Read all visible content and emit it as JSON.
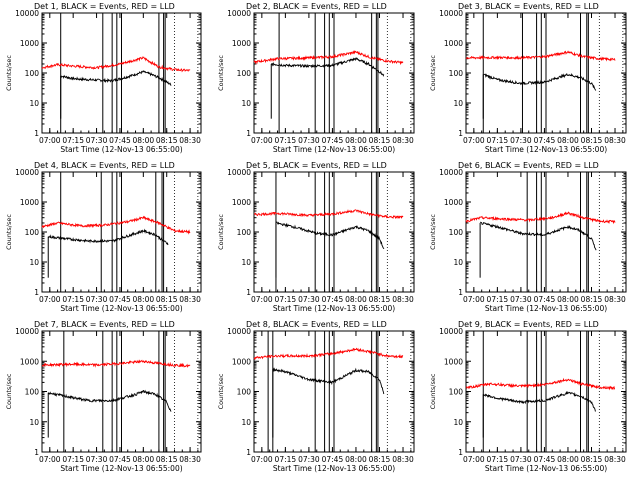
{
  "window": {
    "width": 640,
    "height": 480
  },
  "colors": {
    "events": "#000000",
    "lld": "#ff0000",
    "axes": "#000000",
    "background": "#ffffff"
  },
  "common": {
    "xlabel": "Start Time (12-Nov-13 06:55:00)",
    "ylabel": "Counts/sec",
    "x_tick_labels": [
      "07:00",
      "07:15",
      "07:30",
      "07:45",
      "08:00",
      "08:15",
      "08:30"
    ],
    "y_tick_labels": [
      "1",
      "10",
      "100",
      "1000",
      "10000"
    ]
  },
  "chart_data": [
    {
      "type": "line",
      "title": "Det 1, BLACK = Events, RED = LLD",
      "x_range_minutes": [
        "06:55",
        "08:37"
      ],
      "ylim": [
        1,
        10000
      ],
      "yscale": "log",
      "series": [
        {
          "name": "Events",
          "color": "#000000",
          "start": "07:07",
          "end": "08:18",
          "points": [
            [
              "07:07",
              80
            ],
            [
              "07:15",
              65
            ],
            [
              "07:25",
              60
            ],
            [
              "07:40",
              55
            ],
            [
              "07:50",
              75
            ],
            [
              "08:00",
              110
            ],
            [
              "08:05",
              90
            ],
            [
              "08:10",
              70
            ],
            [
              "08:15",
              50
            ],
            [
              "08:18",
              40
            ]
          ]
        },
        {
          "name": "LLD",
          "color": "#ff0000",
          "start": "06:55",
          "end": "08:30",
          "points": [
            [
              "06:55",
              150
            ],
            [
              "07:05",
              190
            ],
            [
              "07:15",
              170
            ],
            [
              "07:30",
              150
            ],
            [
              "07:45",
              200
            ],
            [
              "08:00",
              320
            ],
            [
              "08:10",
              160
            ],
            [
              "08:20",
              130
            ],
            [
              "08:30",
              120
            ]
          ]
        }
      ],
      "vertical_markers": [
        "07:07",
        "07:34",
        "07:40",
        "07:43",
        "07:46",
        "08:10",
        "08:13",
        "08:14"
      ]
    },
    {
      "type": "line",
      "title": "Det 2, BLACK = Events, RED = LLD",
      "x_range_minutes": [
        "06:55",
        "08:37"
      ],
      "ylim": [
        1,
        10000
      ],
      "yscale": "log",
      "series": [
        {
          "name": "Events",
          "color": "#000000",
          "start": "07:06",
          "end": "08:18",
          "points": [
            [
              "07:06",
              200
            ],
            [
              "07:15",
              180
            ],
            [
              "07:30",
              170
            ],
            [
              "07:45",
              180
            ],
            [
              "08:00",
              300
            ],
            [
              "08:08",
              200
            ],
            [
              "08:15",
              110
            ],
            [
              "08:18",
              80
            ]
          ]
        },
        {
          "name": "LLD",
          "color": "#ff0000",
          "start": "06:55",
          "end": "08:30",
          "points": [
            [
              "06:55",
              230
            ],
            [
              "07:10",
              300
            ],
            [
              "07:30",
              320
            ],
            [
              "07:45",
              350
            ],
            [
              "08:00",
              500
            ],
            [
              "08:10",
              320
            ],
            [
              "08:20",
              250
            ],
            [
              "08:30",
              220
            ]
          ]
        }
      ],
      "vertical_markers": [
        "07:11",
        "07:34",
        "07:40",
        "07:43",
        "07:46",
        "08:10",
        "08:13",
        "08:14"
      ]
    },
    {
      "type": "line",
      "title": "Det 3, BLACK = Events, RED = LLD",
      "x_range_minutes": [
        "06:55",
        "08:37"
      ],
      "ylim": [
        1,
        10000
      ],
      "yscale": "log",
      "series": [
        {
          "name": "Events",
          "color": "#000000",
          "start": "07:06",
          "end": "08:18",
          "points": [
            [
              "07:06",
              90
            ],
            [
              "07:15",
              60
            ],
            [
              "07:30",
              45
            ],
            [
              "07:45",
              50
            ],
            [
              "08:00",
              90
            ],
            [
              "08:08",
              70
            ],
            [
              "08:15",
              45
            ],
            [
              "08:18",
              25
            ]
          ]
        },
        {
          "name": "LLD",
          "color": "#ff0000",
          "start": "06:55",
          "end": "08:30",
          "points": [
            [
              "06:55",
              320
            ],
            [
              "07:15",
              330
            ],
            [
              "07:30",
              320
            ],
            [
              "07:45",
              350
            ],
            [
              "08:00",
              500
            ],
            [
              "08:10",
              350
            ],
            [
              "08:20",
              300
            ],
            [
              "08:30",
              280
            ]
          ]
        }
      ],
      "vertical_markers": [
        "07:06",
        "07:31",
        "07:40",
        "07:43",
        "07:46",
        "08:08",
        "08:12",
        "08:13"
      ]
    },
    {
      "type": "line",
      "title": "Det 4, BLACK = Events, RED = LLD",
      "x_range_minutes": [
        "06:55",
        "08:37"
      ],
      "ylim": [
        1,
        10000
      ],
      "yscale": "log",
      "series": [
        {
          "name": "Events",
          "color": "#000000",
          "start": "06:59",
          "end": "08:16",
          "points": [
            [
              "06:59",
              70
            ],
            [
              "07:10",
              60
            ],
            [
              "07:25",
              50
            ],
            [
              "07:40",
              50
            ],
            [
              "07:55",
              90
            ],
            [
              "08:00",
              110
            ],
            [
              "08:08",
              80
            ],
            [
              "08:13",
              50
            ],
            [
              "08:16",
              40
            ]
          ]
        },
        {
          "name": "LLD",
          "color": "#ff0000",
          "start": "06:55",
          "end": "08:30",
          "points": [
            [
              "06:55",
              150
            ],
            [
              "07:05",
              200
            ],
            [
              "07:20",
              160
            ],
            [
              "07:35",
              170
            ],
            [
              "07:50",
              220
            ],
            [
              "08:00",
              300
            ],
            [
              "08:10",
              200
            ],
            [
              "08:20",
              110
            ],
            [
              "08:30",
              100
            ]
          ]
        }
      ],
      "vertical_markers": [
        "07:07",
        "07:33",
        "07:40",
        "07:43",
        "07:46",
        "08:08",
        "08:12",
        "08:13"
      ]
    },
    {
      "type": "line",
      "title": "Det 5, BLACK = Events, RED = LLD",
      "x_range_minutes": [
        "06:55",
        "08:37"
      ],
      "ylim": [
        1,
        10000
      ],
      "yscale": "log",
      "series": [
        {
          "name": "Events",
          "color": "#000000",
          "start": "07:09",
          "end": "08:18",
          "points": [
            [
              "07:09",
              200
            ],
            [
              "07:20",
              150
            ],
            [
              "07:35",
              90
            ],
            [
              "07:45",
              80
            ],
            [
              "08:00",
              150
            ],
            [
              "08:08",
              110
            ],
            [
              "08:15",
              60
            ],
            [
              "08:18",
              25
            ]
          ]
        },
        {
          "name": "LLD",
          "color": "#ff0000",
          "start": "06:55",
          "end": "08:30",
          "points": [
            [
              "06:55",
              380
            ],
            [
              "07:10",
              420
            ],
            [
              "07:30",
              360
            ],
            [
              "07:45",
              400
            ],
            [
              "08:00",
              520
            ],
            [
              "08:10",
              380
            ],
            [
              "08:20",
              320
            ],
            [
              "08:30",
              310
            ]
          ]
        }
      ],
      "vertical_markers": [
        "07:09",
        "07:34",
        "07:40",
        "07:43",
        "07:46",
        "08:10",
        "08:13",
        "08:14"
      ]
    },
    {
      "type": "line",
      "title": "Det 6, BLACK = Events, RED = LLD",
      "x_range_minutes": [
        "06:55",
        "08:37"
      ],
      "ylim": [
        1,
        10000
      ],
      "yscale": "log",
      "series": [
        {
          "name": "Events",
          "color": "#000000",
          "start": "07:04",
          "end": "08:18",
          "points": [
            [
              "07:04",
              200
            ],
            [
              "07:15",
              150
            ],
            [
              "07:30",
              90
            ],
            [
              "07:45",
              80
            ],
            [
              "08:00",
              150
            ],
            [
              "08:08",
              110
            ],
            [
              "08:15",
              60
            ],
            [
              "08:18",
              25
            ]
          ]
        },
        {
          "name": "LLD",
          "color": "#ff0000",
          "start": "06:55",
          "end": "08:30",
          "points": [
            [
              "06:55",
              230
            ],
            [
              "07:05",
              300
            ],
            [
              "07:20",
              270
            ],
            [
              "07:35",
              250
            ],
            [
              "07:50",
              300
            ],
            [
              "08:00",
              430
            ],
            [
              "08:10",
              300
            ],
            [
              "08:20",
              230
            ],
            [
              "08:30",
              220
            ]
          ]
        }
      ],
      "vertical_markers": [
        "07:34",
        "07:40",
        "07:43",
        "07:46",
        "08:08",
        "08:12",
        "08:13"
      ]
    },
    {
      "type": "line",
      "title": "Det 7, BLACK = Events, RED = LLD",
      "x_range_minutes": [
        "06:55",
        "08:37"
      ],
      "ylim": [
        1,
        10000
      ],
      "yscale": "log",
      "series": [
        {
          "name": "Events",
          "color": "#000000",
          "start": "06:59",
          "end": "08:18",
          "points": [
            [
              "06:59",
              90
            ],
            [
              "07:10",
              70
            ],
            [
              "07:25",
              50
            ],
            [
              "07:40",
              50
            ],
            [
              "07:55",
              80
            ],
            [
              "08:00",
              100
            ],
            [
              "08:08",
              80
            ],
            [
              "08:15",
              45
            ],
            [
              "08:18",
              20
            ]
          ]
        },
        {
          "name": "LLD",
          "color": "#ff0000",
          "start": "06:55",
          "end": "08:30",
          "points": [
            [
              "06:55",
              750
            ],
            [
              "07:15",
              800
            ],
            [
              "07:30",
              750
            ],
            [
              "07:45",
              850
            ],
            [
              "08:00",
              1000
            ],
            [
              "08:10",
              850
            ],
            [
              "08:20",
              750
            ],
            [
              "08:30",
              700
            ]
          ]
        }
      ],
      "vertical_markers": [
        "07:09",
        "07:34",
        "07:40",
        "07:43",
        "07:46",
        "08:10",
        "08:13",
        "08:14"
      ]
    },
    {
      "type": "line",
      "title": "Det 8, BLACK = Events, RED = LLD",
      "x_range_minutes": [
        "06:55",
        "08:37"
      ],
      "ylim": [
        1,
        10000
      ],
      "yscale": "log",
      "series": [
        {
          "name": "Events",
          "color": "#000000",
          "start": "07:07",
          "end": "08:18",
          "points": [
            [
              "07:07",
              550
            ],
            [
              "07:15",
              450
            ],
            [
              "07:30",
              250
            ],
            [
              "07:45",
              200
            ],
            [
              "08:00",
              500
            ],
            [
              "08:08",
              450
            ],
            [
              "08:15",
              250
            ],
            [
              "08:18",
              80
            ]
          ]
        },
        {
          "name": "LLD",
          "color": "#ff0000",
          "start": "06:55",
          "end": "08:30",
          "points": [
            [
              "06:55",
              1300
            ],
            [
              "07:10",
              1500
            ],
            [
              "07:30",
              1500
            ],
            [
              "07:45",
              1800
            ],
            [
              "08:00",
              2500
            ],
            [
              "08:10",
              2000
            ],
            [
              "08:20",
              1500
            ],
            [
              "08:30",
              1400
            ]
          ]
        }
      ],
      "vertical_markers": [
        "07:04",
        "07:07",
        "07:34",
        "07:40",
        "07:43",
        "07:46",
        "08:10",
        "08:13",
        "08:14"
      ]
    },
    {
      "type": "line",
      "title": "Det 9, BLACK = Events, RED = LLD",
      "x_range_minutes": [
        "06:55",
        "08:37"
      ],
      "ylim": [
        1,
        10000
      ],
      "yscale": "log",
      "series": [
        {
          "name": "Events",
          "color": "#000000",
          "start": "07:06",
          "end": "08:18",
          "points": [
            [
              "07:06",
              80
            ],
            [
              "07:15",
              60
            ],
            [
              "07:30",
              45
            ],
            [
              "07:45",
              50
            ],
            [
              "08:00",
              90
            ],
            [
              "08:08",
              70
            ],
            [
              "08:15",
              45
            ],
            [
              "08:18",
              20
            ]
          ]
        },
        {
          "name": "LLD",
          "color": "#ff0000",
          "start": "06:55",
          "end": "08:30",
          "points": [
            [
              "06:55",
              130
            ],
            [
              "07:10",
              180
            ],
            [
              "07:30",
              150
            ],
            [
              "07:45",
              170
            ],
            [
              "08:00",
              250
            ],
            [
              "08:10",
              170
            ],
            [
              "08:20",
              140
            ],
            [
              "08:30",
              130
            ]
          ]
        }
      ],
      "vertical_markers": [
        "07:06",
        "07:34",
        "07:40",
        "07:43",
        "07:46",
        "08:08",
        "08:12",
        "08:13"
      ]
    }
  ]
}
